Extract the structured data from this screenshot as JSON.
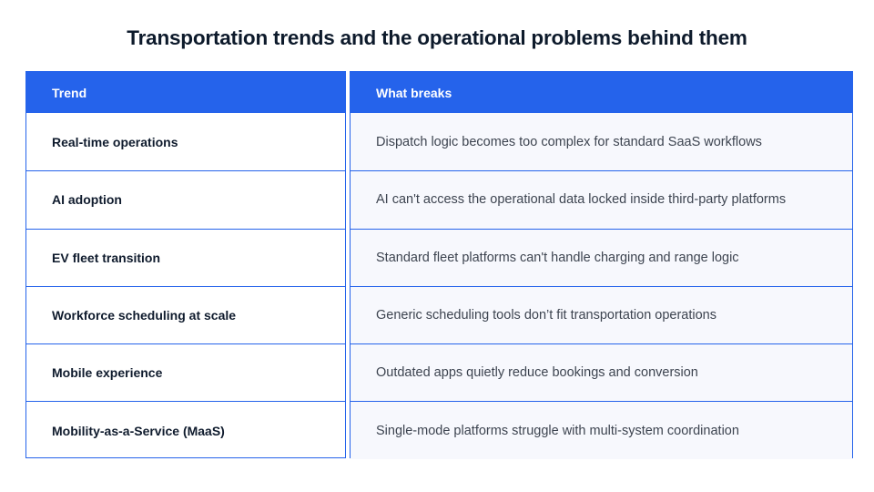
{
  "title": "Transportation trends and the operational problems behind them",
  "table": {
    "headers": {
      "trend": "Trend",
      "what_breaks": "What breaks"
    },
    "rows": [
      {
        "trend": "Real-time operations",
        "what_breaks": "Dispatch logic becomes too complex for standard SaaS workflows"
      },
      {
        "trend": "AI adoption",
        "what_breaks": "AI can't access the operational data locked inside third-party platforms"
      },
      {
        "trend": "EV fleet transition",
        "what_breaks": "Standard fleet platforms can't handle charging and range logic"
      },
      {
        "trend": "Workforce scheduling at scale",
        "what_breaks": "Generic scheduling tools don’t fit transportation operations"
      },
      {
        "trend": "Mobile experience",
        "what_breaks": "Outdated apps quietly reduce bookings and conversion"
      },
      {
        "trend": "Mobility-as-a-Service (MaaS)",
        "what_breaks": "Single-mode platforms struggle with multi-system coordination"
      }
    ]
  },
  "colors": {
    "accent": "#2563eb",
    "title_text": "#0d1a2b",
    "body_text": "#3d4450",
    "row_background": "#f7f8fd"
  }
}
